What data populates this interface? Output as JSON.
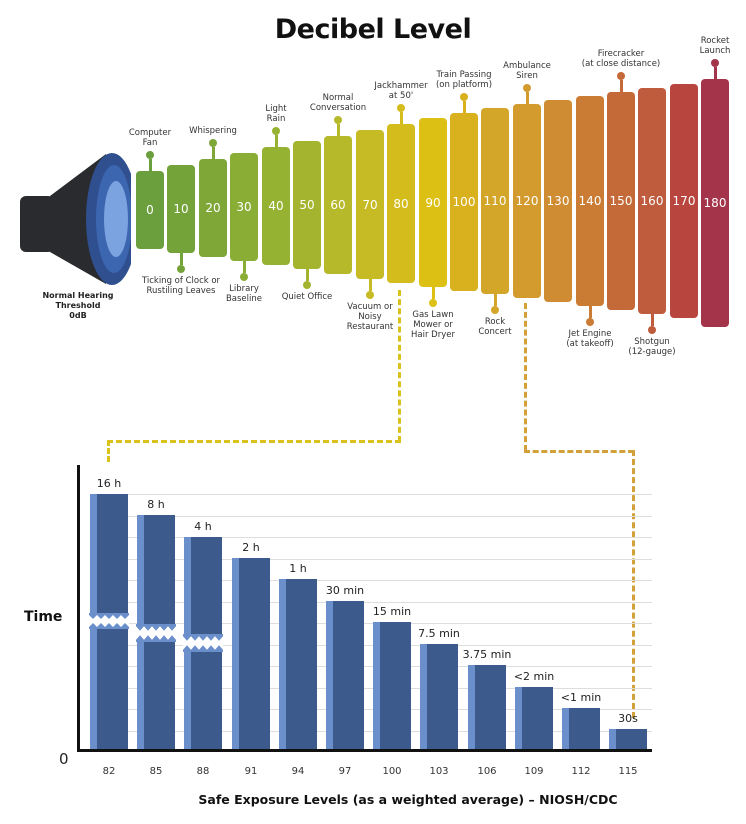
{
  "title": "Decibel Level",
  "speaker": {
    "label_lines": [
      "Normal Hearing",
      "Threshold",
      "0dB"
    ]
  },
  "decibel_scale": [
    {
      "db": "0",
      "color": "#6b9e3c"
    },
    {
      "db": "10",
      "color": "#74a33a"
    },
    {
      "db": "20",
      "color": "#7ea737"
    },
    {
      "db": "30",
      "color": "#8aad36"
    },
    {
      "db": "40",
      "color": "#96b232"
    },
    {
      "db": "50",
      "color": "#a4b42e"
    },
    {
      "db": "60",
      "color": "#b6b92a"
    },
    {
      "db": "70",
      "color": "#c7bb25"
    },
    {
      "db": "80",
      "color": "#d5bc1d"
    },
    {
      "db": "90",
      "color": "#ddc014"
    },
    {
      "db": "100",
      "color": "#d9b01e"
    },
    {
      "db": "110",
      "color": "#d3a62a"
    },
    {
      "db": "120",
      "color": "#d39a2d"
    },
    {
      "db": "130",
      "color": "#cf8c32"
    },
    {
      "db": "140",
      "color": "#cb7c34"
    },
    {
      "db": "150",
      "color": "#c46a38"
    },
    {
      "db": "160",
      "color": "#bf5c3e"
    },
    {
      "db": "170",
      "color": "#b8453e"
    },
    {
      "db": "180",
      "color": "#a3344a"
    }
  ],
  "sound_sources": {
    "above": [
      {
        "db": "0",
        "lines": [
          "Computer",
          "Fan"
        ]
      },
      {
        "db": "20",
        "lines": [
          "Whispering"
        ]
      },
      {
        "db": "40",
        "lines": [
          "Light",
          "Rain"
        ]
      },
      {
        "db": "60",
        "lines": [
          "Normal",
          "Conversation"
        ]
      },
      {
        "db": "80",
        "lines": [
          "Jackhammer",
          "at 50'"
        ]
      },
      {
        "db": "100",
        "lines": [
          "Train Passing",
          "(on platform)"
        ]
      },
      {
        "db": "120",
        "lines": [
          "Ambulance",
          "Siren"
        ]
      },
      {
        "db": "150",
        "lines": [
          "Firecracker",
          "(at close distance)"
        ]
      },
      {
        "db": "180",
        "lines": [
          "Rocket",
          "Launch"
        ]
      }
    ],
    "below": [
      {
        "db": "10",
        "lines": [
          "Ticking of Clock or",
          "Rustiling Leaves"
        ]
      },
      {
        "db": "30",
        "lines": [
          "Library",
          "Baseline"
        ]
      },
      {
        "db": "50",
        "lines": [
          "Quiet Office"
        ]
      },
      {
        "db": "70",
        "lines": [
          "Vacuum or",
          "Noisy",
          "Restaurant"
        ]
      },
      {
        "db": "90",
        "lines": [
          "Gas Lawn",
          "Mower or",
          "Hair Dryer"
        ]
      },
      {
        "db": "110",
        "lines": [
          "Rock",
          "Concert"
        ]
      },
      {
        "db": "140",
        "lines": [
          "Jet Engine",
          "(at takeoff)"
        ]
      },
      {
        "db": "160",
        "lines": [
          "Shotgun",
          "(12-gauge)"
        ]
      }
    ]
  },
  "connectors": [
    {
      "from_db": "80",
      "to": "82 dB bar",
      "color": "#d9c21c"
    },
    {
      "from_db": "120",
      "to": "115 dB bar",
      "color": "#d3a13a"
    }
  ],
  "chart_data": {
    "type": "bar",
    "title": "Safe Exposure Levels (as a weighted average) – NIOSH/CDC",
    "xlabel": "Safe Exposure Levels (as a weighted average) – NIOSH/CDC",
    "ylabel": "Time",
    "y_origin_label": "0",
    "categories": [
      "82",
      "85",
      "88",
      "91",
      "94",
      "97",
      "100",
      "103",
      "106",
      "109",
      "112",
      "115"
    ],
    "values_minutes": [
      960,
      480,
      240,
      120,
      60,
      30,
      15,
      7.5,
      3.75,
      2,
      1,
      0.5
    ],
    "value_labels": [
      "16 h",
      "8 h",
      "4 h",
      "2 h",
      "1 h",
      "30 min",
      "15 min",
      "7.5 min",
      "3.75 min",
      "<2 min",
      "<1 min",
      "30s"
    ],
    "broken_axis_bars": [
      "82",
      "85",
      "88"
    ],
    "scale": "log-like (each step halves; first three bars truncated with break marks)",
    "grid": true,
    "bar_color": "#3d5a8c",
    "bar_highlight_color": "#6b8fcb"
  }
}
